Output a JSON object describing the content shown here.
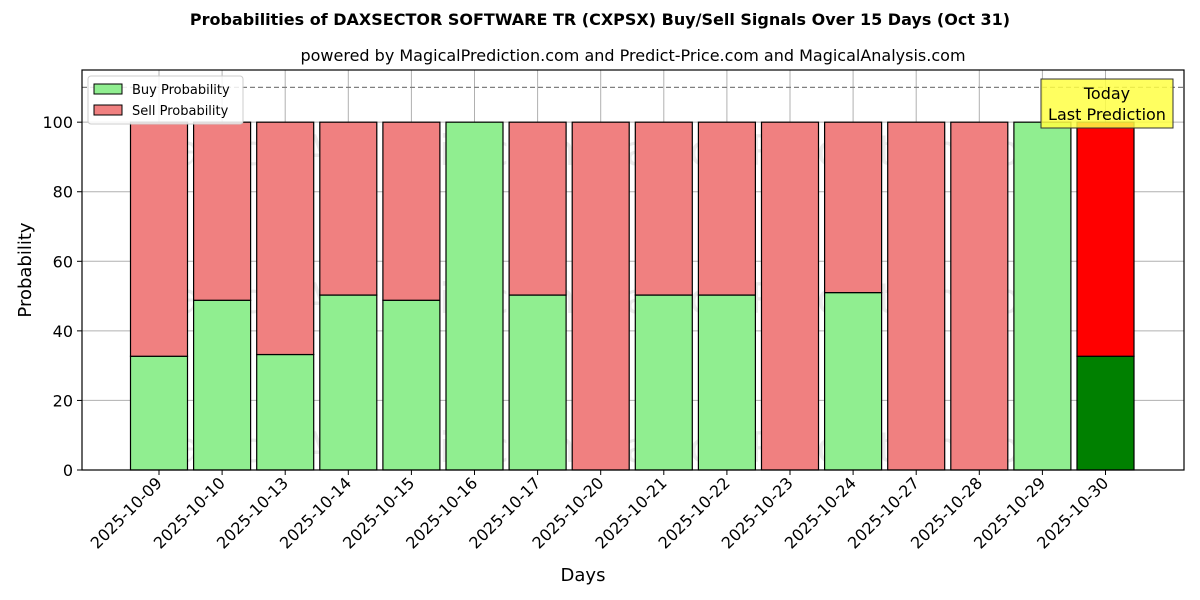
{
  "title": "Probabilities of DAXSECTOR SOFTWARE TR (CXPSX) Buy/Sell Signals Over 15 Days (Oct 31)",
  "subtitle": "powered by MagicalPrediction.com and Predict-Price.com and MagicalAnalysis.com",
  "watermark": "MagicalAnalysis.com     MagicalPrediction.com",
  "annotation": {
    "line1": "Today",
    "line2": "Last Prediction"
  },
  "colors": {
    "buy": "#90ee90",
    "sell": "#f08080",
    "today_buy": "#008000",
    "today_sell": "#ff0000",
    "annotation_bg": "#ffff44"
  },
  "chart_data": {
    "type": "bar",
    "stacked": true,
    "title": "Probabilities of DAXSECTOR SOFTWARE TR (CXPSX) Buy/Sell Signals Over 15 Days (Oct 31)",
    "subtitle": "powered by MagicalPrediction.com and Predict-Price.com and MagicalAnalysis.com",
    "xlabel": "Days",
    "ylabel": "Probability",
    "ylim": [
      0,
      115
    ],
    "yticks": [
      0,
      20,
      40,
      60,
      80,
      100
    ],
    "grid": true,
    "legend_position": "upper left",
    "reference_line": 110,
    "categories": [
      "2025-10-09",
      "2025-10-10",
      "2025-10-13",
      "2025-10-14",
      "2025-10-15",
      "2025-10-16",
      "2025-10-17",
      "2025-10-20",
      "2025-10-21",
      "2025-10-22",
      "2025-10-23",
      "2025-10-24",
      "2025-10-27",
      "2025-10-28",
      "2025-10-29",
      "2025-10-30"
    ],
    "series": [
      {
        "name": "Buy Probability",
        "values": [
          32.7,
          48.8,
          33.2,
          50.3,
          48.8,
          100,
          50.3,
          0,
          50.3,
          50.3,
          0,
          51.0,
          0,
          0,
          100,
          32.7
        ]
      },
      {
        "name": "Sell Probability",
        "values": [
          67.3,
          51.2,
          66.8,
          49.7,
          51.2,
          0,
          49.7,
          100,
          49.7,
          49.7,
          100,
          49.0,
          100,
          100,
          0,
          67.3
        ]
      }
    ],
    "annotations": [
      {
        "text": "Today\nLast Prediction",
        "x": "2025-10-30"
      }
    ]
  }
}
